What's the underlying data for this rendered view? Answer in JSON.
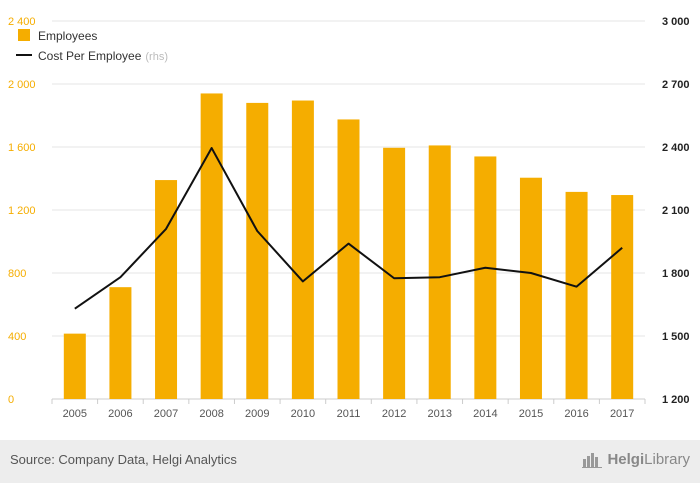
{
  "chart_data": {
    "type": "bar+line",
    "categories": [
      "2005",
      "2006",
      "2007",
      "2008",
      "2009",
      "2010",
      "2011",
      "2012",
      "2013",
      "2014",
      "2015",
      "2016",
      "2017"
    ],
    "series": [
      {
        "name": "Employees",
        "kind": "bar",
        "axis": "left",
        "color": "#f5ad00",
        "values": [
          415,
          710,
          1390,
          1940,
          1880,
          1895,
          1775,
          1595,
          1610,
          1540,
          1405,
          1315,
          1295
        ]
      },
      {
        "name": "Cost Per Employee",
        "suffix": "(rhs)",
        "kind": "line",
        "axis": "right",
        "color": "#111111",
        "values": [
          1630,
          1780,
          2010,
          2395,
          2000,
          1760,
          1940,
          1775,
          1780,
          1825,
          1800,
          1735,
          1920
        ]
      }
    ],
    "left_axis": {
      "min": 0,
      "max": 2400,
      "ticks": [
        0,
        400,
        800,
        1200,
        1600,
        2000,
        2400
      ],
      "tick_labels": [
        "0",
        "400",
        "800",
        "1 200",
        "1 600",
        "2 000",
        "2 400"
      ]
    },
    "right_axis": {
      "min": 1200,
      "max": 3000,
      "ticks": [
        1200,
        1500,
        1800,
        2100,
        2400,
        2700,
        3000
      ],
      "tick_labels": [
        "1 200",
        "1 500",
        "1 800",
        "2 100",
        "2 400",
        "2 700",
        "3 000"
      ]
    },
    "legend_position": "top-left",
    "grid": true
  },
  "footer": {
    "source": "Source: Company Data, Helgi Analytics",
    "brand_prefix": "Helgi",
    "brand_suffix": "Library"
  },
  "icons": {
    "brand": "helgi-library-logo-icon"
  }
}
